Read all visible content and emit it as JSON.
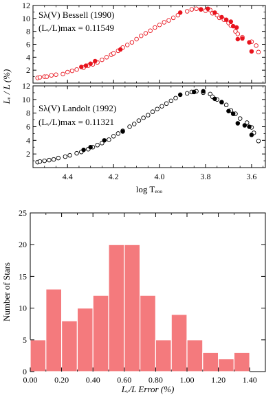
{
  "colors": {
    "bessell": "#e8141e",
    "landolt": "#000000",
    "bar": "#f47a7d",
    "bar_edge": "#ffffff"
  },
  "chart_data": [
    {
      "type": "scatter",
      "panel": "top",
      "annotation_main": "Sλ(V) Bessell (1990)",
      "annotation_max": "(Lᵥ/L)max = 0.11549",
      "ylabel": "Lᵥ / L (%)",
      "xlim": [
        4.55,
        3.54
      ],
      "ylim": [
        0,
        12
      ],
      "x_ticks": [
        4.4,
        4.2,
        4.0,
        3.8,
        3.6
      ],
      "y_ticks": [
        2,
        4,
        6,
        8,
        10,
        12
      ],
      "y_tick_labels": [
        "2",
        "4",
        "6",
        "8",
        "10",
        "12"
      ],
      "series": [
        {
          "marker": "open",
          "points": [
            [
              4.53,
              0.8
            ],
            [
              4.52,
              0.9
            ],
            [
              4.5,
              1.0
            ],
            [
              4.49,
              1.0
            ],
            [
              4.47,
              1.2
            ],
            [
              4.45,
              1.3
            ],
            [
              4.42,
              1.4
            ],
            [
              4.4,
              1.7
            ],
            [
              4.38,
              1.9
            ],
            [
              4.36,
              2.1
            ],
            [
              4.33,
              2.4
            ],
            [
              4.31,
              2.7
            ],
            [
              4.29,
              2.9
            ],
            [
              4.27,
              3.2
            ],
            [
              4.25,
              3.6
            ],
            [
              4.23,
              4.0
            ],
            [
              4.21,
              4.4
            ],
            [
              4.2,
              4.6
            ],
            [
              4.18,
              5.0
            ],
            [
              4.16,
              5.5
            ],
            [
              4.14,
              5.9
            ],
            [
              4.12,
              6.3
            ],
            [
              4.1,
              6.8
            ],
            [
              4.08,
              7.3
            ],
            [
              4.06,
              7.7
            ],
            [
              4.04,
              8.1
            ],
            [
              4.02,
              8.6
            ],
            [
              4.0,
              9.0
            ],
            [
              3.98,
              9.4
            ],
            [
              3.96,
              9.7
            ],
            [
              3.94,
              10.1
            ],
            [
              3.92,
              10.5
            ],
            [
              3.88,
              11.1
            ],
            [
              3.86,
              11.4
            ],
            [
              3.84,
              11.5
            ],
            [
              3.82,
              11.4
            ],
            [
              3.8,
              11.2
            ],
            [
              3.78,
              11.3
            ],
            [
              3.77,
              10.8
            ],
            [
              3.75,
              10.5
            ],
            [
              3.74,
              10.1
            ],
            [
              3.72,
              9.8
            ],
            [
              3.7,
              9.3
            ],
            [
              3.69,
              8.9
            ],
            [
              3.67,
              8.0
            ],
            [
              3.66,
              7.6
            ],
            [
              3.64,
              7.1
            ],
            [
              3.6,
              6.4
            ],
            [
              3.58,
              5.8
            ],
            [
              3.57,
              4.8
            ]
          ]
        },
        {
          "marker": "filled",
          "points": [
            [
              4.34,
              2.5
            ],
            [
              4.32,
              2.7
            ],
            [
              4.3,
              3.0
            ],
            [
              4.28,
              3.4
            ],
            [
              4.17,
              5.2
            ],
            [
              3.91,
              10.9
            ],
            [
              3.82,
              11.4
            ],
            [
              3.79,
              11.5
            ],
            [
              3.76,
              10.9
            ],
            [
              3.73,
              10.2
            ],
            [
              3.71,
              9.8
            ],
            [
              3.69,
              9.5
            ],
            [
              3.68,
              8.8
            ],
            [
              3.665,
              8.6
            ],
            [
              3.66,
              6.8
            ],
            [
              3.64,
              6.9
            ],
            [
              3.61,
              6.3
            ],
            [
              3.6,
              4.9
            ]
          ]
        }
      ]
    },
    {
      "type": "scatter",
      "panel": "middle",
      "annotation_main": "Sλ(V) Landolt (1992)",
      "annotation_max": "(Lᵥ/L)max = 0.11321",
      "xlabel": "log Tₑₒₒ",
      "xlim": [
        4.55,
        3.54
      ],
      "ylim": [
        0,
        12
      ],
      "x_ticks": [
        4.4,
        4.2,
        4.0,
        3.8,
        3.6
      ],
      "x_tick_labels": [
        "4.4",
        "4.2",
        "4.0",
        "3.8",
        "3.6"
      ],
      "y_ticks": [
        2,
        4,
        6,
        8,
        10,
        12
      ],
      "y_tick_labels": [
        "2",
        "4",
        "6",
        "8",
        "10",
        "12"
      ],
      "series": [
        {
          "marker": "open",
          "points": [
            [
              4.53,
              0.8
            ],
            [
              4.52,
              0.9
            ],
            [
              4.5,
              1.0
            ],
            [
              4.48,
              1.1
            ],
            [
              4.46,
              1.2
            ],
            [
              4.44,
              1.4
            ],
            [
              4.41,
              1.6
            ],
            [
              4.39,
              1.8
            ],
            [
              4.36,
              2.1
            ],
            [
              4.34,
              2.3
            ],
            [
              4.31,
              2.7
            ],
            [
              4.29,
              3.0
            ],
            [
              4.27,
              3.3
            ],
            [
              4.25,
              3.6
            ],
            [
              4.22,
              4.1
            ],
            [
              4.2,
              4.6
            ],
            [
              4.18,
              5.0
            ],
            [
              4.16,
              5.4
            ],
            [
              4.13,
              6.0
            ],
            [
              4.11,
              6.4
            ],
            [
              4.09,
              6.9
            ],
            [
              4.07,
              7.3
            ],
            [
              4.05,
              7.7
            ],
            [
              4.03,
              8.2
            ],
            [
              4.01,
              8.6
            ],
            [
              3.99,
              9.0
            ],
            [
              3.97,
              9.4
            ],
            [
              3.95,
              9.8
            ],
            [
              3.93,
              10.2
            ],
            [
              3.88,
              10.9
            ],
            [
              3.86,
              11.1
            ],
            [
              3.84,
              11.2
            ],
            [
              3.81,
              11.0
            ],
            [
              3.78,
              10.8
            ],
            [
              3.77,
              10.4
            ],
            [
              3.75,
              10.0
            ],
            [
              3.73,
              9.6
            ],
            [
              3.71,
              9.2
            ],
            [
              3.69,
              8.4
            ],
            [
              3.67,
              7.9
            ],
            [
              3.65,
              7.2
            ],
            [
              3.62,
              6.6
            ],
            [
              3.6,
              5.9
            ],
            [
              3.59,
              5.1
            ],
            [
              3.57,
              3.9
            ]
          ]
        },
        {
          "marker": "filled",
          "points": [
            [
              4.33,
              2.6
            ],
            [
              4.3,
              3.0
            ],
            [
              4.24,
              4.0
            ],
            [
              4.16,
              5.3
            ],
            [
              3.91,
              10.7
            ],
            [
              3.85,
              11.1
            ],
            [
              3.81,
              11.2
            ],
            [
              3.76,
              10.1
            ],
            [
              3.73,
              9.6
            ],
            [
              3.7,
              8.3
            ],
            [
              3.68,
              7.9
            ],
            [
              3.66,
              6.5
            ],
            [
              3.63,
              6.2
            ],
            [
              3.61,
              6.0
            ],
            [
              3.6,
              4.8
            ]
          ]
        }
      ]
    },
    {
      "type": "bar",
      "panel": "bottom",
      "xlabel": "Lᵥ/L Error (%)",
      "ylabel": "Number of Stars",
      "xlim": [
        0.0,
        1.5
      ],
      "ylim": [
        0,
        25
      ],
      "bin_width": 0.1,
      "bin_starts": [
        0.0,
        0.1,
        0.2,
        0.3,
        0.4,
        0.5,
        0.6,
        0.7,
        0.8,
        0.9,
        1.0,
        1.1,
        1.2,
        1.3
      ],
      "values": [
        5,
        13,
        8,
        10,
        12,
        20,
        20,
        12,
        5,
        9,
        5,
        3,
        2,
        3
      ],
      "x_ticks": [
        0.0,
        0.2,
        0.4,
        0.6,
        0.8,
        1.0,
        1.2,
        1.4
      ],
      "x_tick_labels": [
        "0.00",
        "0.20",
        "0.40",
        "0.60",
        "0.80",
        "1.00",
        "1.20",
        "1.40"
      ],
      "y_ticks": [
        0,
        5,
        10,
        15,
        20,
        25
      ],
      "y_tick_labels": [
        "0",
        "5",
        "10",
        "15",
        "20",
        "25"
      ]
    }
  ]
}
